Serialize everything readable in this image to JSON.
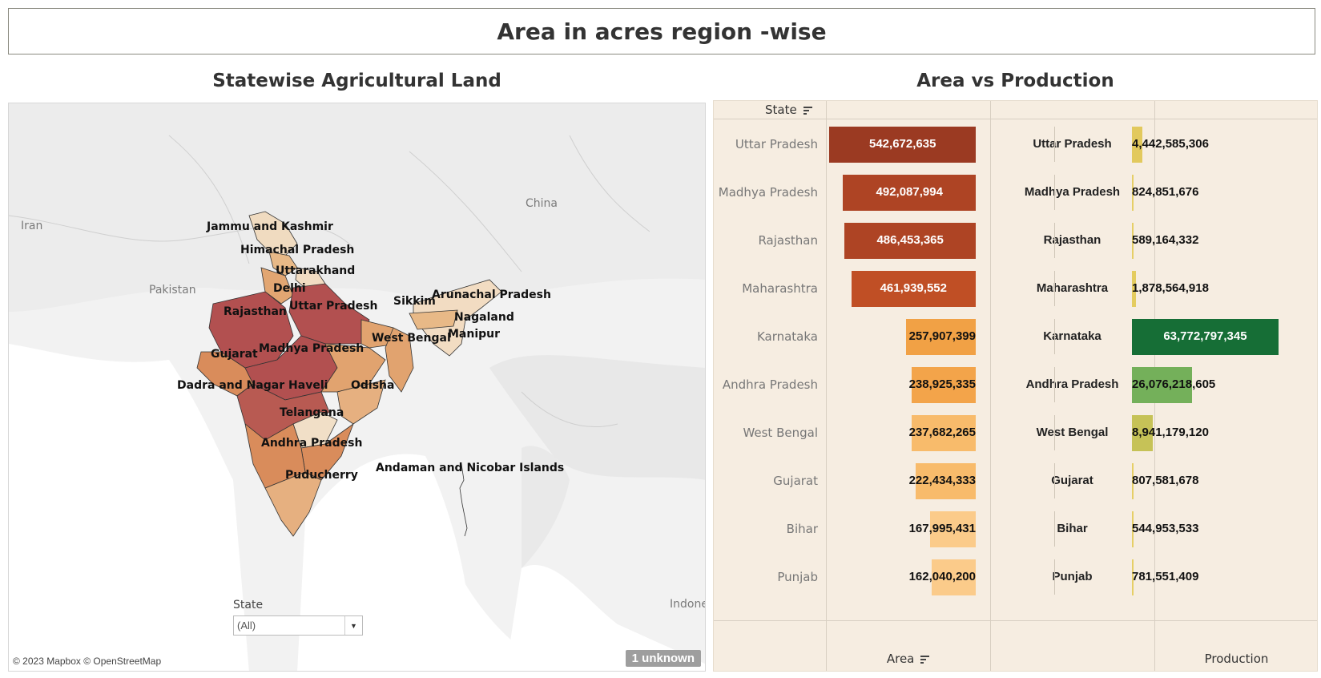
{
  "header": {
    "title": "Area in acres region -wise"
  },
  "map_panel": {
    "title": "Statewise Agricultural Land",
    "countries": [
      "Iran",
      "Pakistan",
      "China",
      "Indone"
    ],
    "state_labels": [
      "Jammu and Kashmir",
      "Himachal Pradesh",
      "Uttarakhand",
      "Delhi",
      "Rajasthan",
      "Uttar Pradesh",
      "Sikkim",
      "Arunachal Pradesh",
      "Nagaland",
      "Manipur",
      "West Bengal",
      "Gujarat",
      "Madhya Pradesh",
      "Dadra and Nagar Haveli",
      "Odisha",
      "Telangana",
      "Andhra Pradesh",
      "Andaman and Nicobar Islands",
      "Puducherry"
    ],
    "filter": {
      "label": "State",
      "value": "(All)"
    },
    "attribution": "© 2023 Mapbox © OpenStreetMap",
    "unknown_badge": "1 unknown"
  },
  "chart_panel": {
    "title": "Area vs Production",
    "row_header": "State",
    "col_area": "Area",
    "col_production": "Production"
  },
  "chart_data": {
    "type": "bar",
    "categories": [
      "Uttar Pradesh",
      "Madhya Pradesh",
      "Rajasthan",
      "Maharashtra",
      "Karnataka",
      "Andhra Pradesh",
      "West Bengal",
      "Gujarat",
      "Bihar",
      "Punjab"
    ],
    "series": [
      {
        "name": "Area",
        "values": [
          542672635,
          492087994,
          486453365,
          461939552,
          257907399,
          238925335,
          237682265,
          222434333,
          167995431,
          162040200
        ],
        "labels": [
          "542,672,635",
          "492,087,994",
          "486,453,365",
          "461,939,552",
          "257,907,399",
          "238,925,335",
          "237,682,265",
          "222,434,333",
          "167,995,431",
          "162,040,200"
        ]
      },
      {
        "name": "Production",
        "values": [
          4442585306,
          824851676,
          589164332,
          1878564918,
          63772797345,
          26076218605,
          8941179120,
          807581678,
          544953533,
          781551409
        ],
        "labels": [
          "4,442,585,306",
          "824,851,676",
          "589,164,332",
          "1,878,564,918",
          "63,772,797,345",
          "26,076,218,605",
          "8,941,179,120",
          "807,581,678",
          "544,953,533",
          "781,551,409"
        ]
      }
    ],
    "area_colors": [
      "#9b3a22",
      "#ae4424",
      "#ae4424",
      "#c04f25",
      "#f1a145",
      "#f3a44a",
      "#f8bb6b",
      "#f8bb6b",
      "#fbcb8a",
      "#fbcb8a"
    ],
    "production_colors": [
      "#e2c95d",
      "#e6cf66",
      "#e6cf66",
      "#e4cc5f",
      "#166e36",
      "#74b05a",
      "#c6c257",
      "#e6cf66",
      "#e6cf66",
      "#e6cf66"
    ],
    "area_label_colors": [
      "#ffffff",
      "#ffffff",
      "#ffffff",
      "#ffffff",
      "#111111",
      "#111111",
      "#111111",
      "#111111",
      "#111111",
      "#111111"
    ],
    "production_label_colors": [
      "#111111",
      "#111111",
      "#111111",
      "#111111",
      "#ffffff",
      "#111111",
      "#111111",
      "#111111",
      "#111111",
      "#111111"
    ]
  }
}
